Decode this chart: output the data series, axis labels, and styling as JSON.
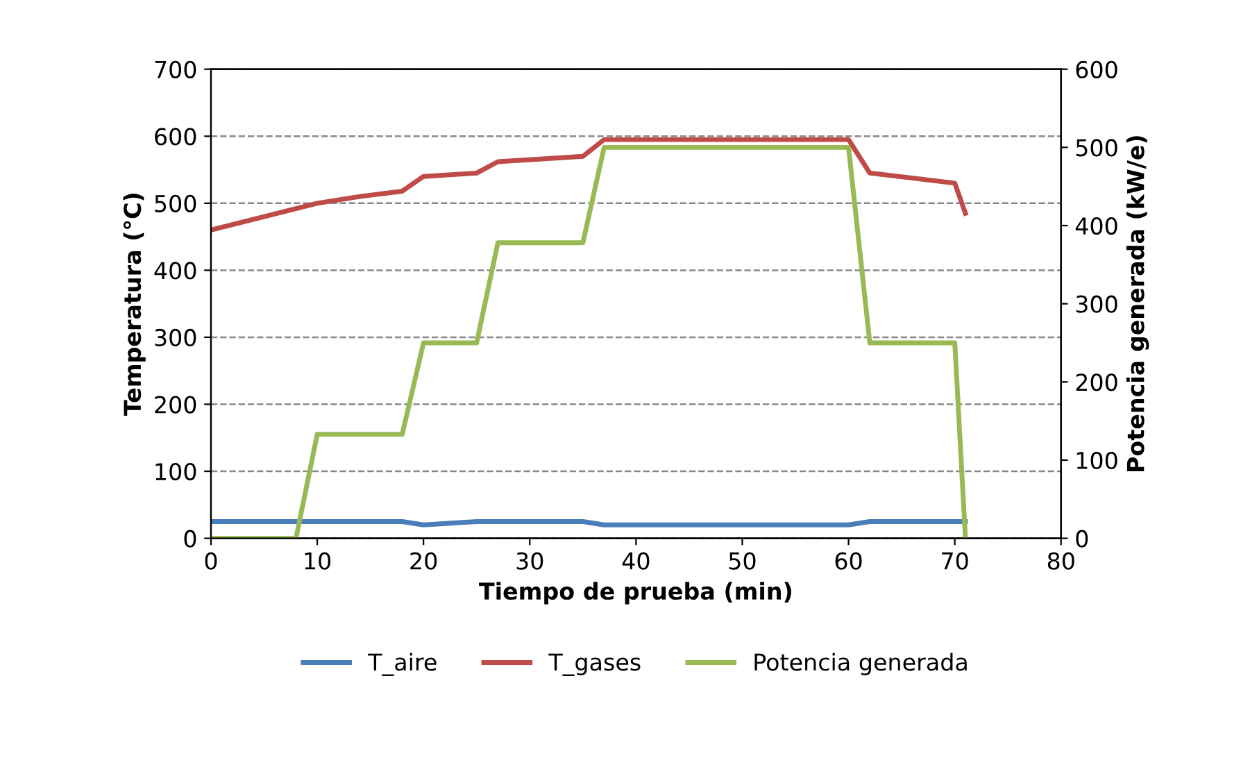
{
  "chart_data": {
    "type": "line",
    "xlabel": "Tiempo de prueba (min)",
    "ylabel": "Temperatura (°C)",
    "y2label": "Potencia generada (kW/e)",
    "xlim": [
      0,
      80
    ],
    "xticks": [
      0,
      10,
      20,
      30,
      40,
      50,
      60,
      70,
      80
    ],
    "ylim": [
      0,
      700
    ],
    "yticks": [
      0,
      100,
      200,
      300,
      400,
      500,
      600,
      700
    ],
    "y2lim": [
      0,
      600
    ],
    "y2ticks": [
      0,
      100,
      200,
      300,
      400,
      500,
      600
    ],
    "grid": "y",
    "legend": "bottom",
    "line_style": "solid",
    "marker": "none",
    "series": [
      {
        "name": "T_aire",
        "color": "#4a7ebb",
        "x": [
          0,
          18,
          20,
          25,
          35,
          37,
          60,
          62,
          71
        ],
        "values": [
          25,
          25,
          20,
          25,
          25,
          20,
          20,
          25,
          25
        ]
      },
      {
        "name": "T_gases",
        "color": "#be4b48",
        "x": [
          0,
          10,
          14,
          18,
          20,
          25,
          27,
          35,
          37,
          60,
          62,
          70,
          71
        ],
        "values": [
          460,
          500,
          510,
          518,
          540,
          545,
          562,
          570,
          595,
          595,
          545,
          530,
          485
        ]
      },
      {
        "name": "Potencia generada",
        "color": "#98b954",
        "axis": "y2",
        "x": [
          0,
          8,
          10,
          18,
          20,
          25,
          27,
          35,
          37,
          60,
          62,
          70,
          71
        ],
        "values": [
          0,
          0,
          133,
          133,
          250,
          250,
          378,
          378,
          500,
          500,
          250,
          250,
          0
        ]
      }
    ]
  }
}
